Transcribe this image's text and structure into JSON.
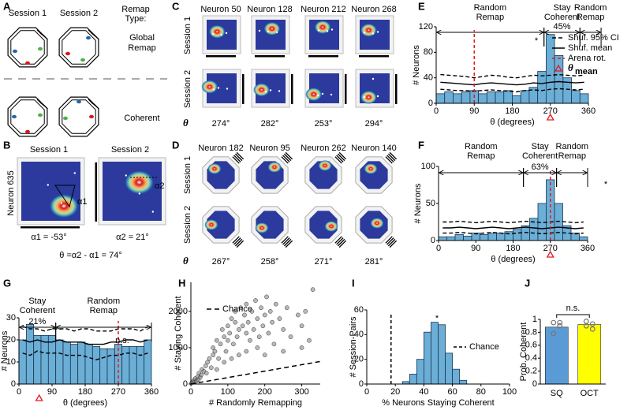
{
  "panel_a": {
    "letter": "A",
    "session_1": "Session 1",
    "session_2": "Session 2",
    "remap_type": "Remap",
    "remap_type_2": "Type:",
    "global_remap": [
      "Global",
      "Remap"
    ],
    "coherent": "Coherent"
  },
  "panel_b": {
    "letter": "B",
    "session_1": "Session 1",
    "session_2": "Session 2",
    "neuron": "Neuron 635",
    "marker_1": "α1",
    "marker_2": "α2",
    "alpha_1": "α1 = -53°",
    "alpha_2": "α2 = 21°",
    "theta": "θ =α2 - α1 = 74°"
  },
  "panel_c": {
    "letter": "C",
    "neurons": [
      "Neuron 50",
      "Neuron 128",
      "Neuron 212",
      "Neuron 268"
    ],
    "rows": [
      "Session 1",
      "Session 2"
    ],
    "theta_symbol": "θ",
    "theta": [
      "274°",
      "282°",
      "253°",
      "294°"
    ]
  },
  "panel_d": {
    "letter": "D",
    "neurons": [
      "Neuron 182",
      "Neuron 95",
      "Neuron 262",
      "Neuron 140"
    ],
    "rows": [
      "Session 1",
      "Session 2"
    ],
    "theta_symbol": "θ",
    "theta": [
      "267°",
      "258°",
      "271°",
      "281°"
    ]
  },
  "chart_data": [
    {
      "type": "histogram",
      "panel": "E",
      "bins": [
        0,
        20,
        40,
        60,
        80,
        100,
        120,
        140,
        160,
        180,
        200,
        220,
        240,
        260,
        280,
        300,
        320,
        340,
        360
      ],
      "values": [
        15,
        18,
        15,
        18,
        20,
        15,
        18,
        18,
        20,
        12,
        20,
        25,
        50,
        108,
        75,
        40,
        20,
        15
      ],
      "color": "#6baed6",
      "xlim": [
        0,
        360
      ],
      "xticks": [
        0,
        90,
        180,
        270,
        360
      ],
      "ylim": [
        0,
        120
      ],
      "yticks": [
        0,
        40,
        80,
        120
      ],
      "xlabel": "θ (degrees)",
      "ylabel": "# Neurons",
      "line_x": [
        10,
        30,
        50,
        70,
        90,
        110,
        130,
        150,
        170,
        190,
        210,
        230,
        250,
        270,
        290,
        310,
        330,
        350
      ],
      "series": [
        {
          "name": "Shuf. 95% CI",
          "dash": true,
          "color": "#000000",
          "values": [
            45,
            44,
            43,
            42,
            40,
            42,
            44,
            43,
            41,
            40,
            42,
            44,
            43,
            44,
            45,
            44,
            43,
            44
          ],
          "lower": [
            22,
            21,
            20,
            20,
            19,
            20,
            21,
            20,
            19,
            18,
            20,
            21,
            20,
            22,
            23,
            22,
            21,
            22
          ]
        },
        {
          "name": "Shuf. mean",
          "dash": false,
          "color": "#000000",
          "values": [
            33,
            32,
            31,
            30,
            29,
            31,
            32,
            31,
            30,
            29,
            30,
            32,
            31,
            33,
            34,
            33,
            32,
            33
          ]
        }
      ],
      "reference_line": {
        "name": "Arena rot.",
        "value": 90,
        "color": "#e41a1c"
      },
      "mean_marker": {
        "name": "θ",
        "name_sub": "mean",
        "value": 270,
        "color": "#e41a1c"
      },
      "regions": [
        {
          "label": [
            "Random",
            "Remap"
          ],
          "range": [
            0,
            255
          ]
        },
        {
          "label": [
            "Stay",
            "Coherent"
          ],
          "pct": "45%",
          "range": [
            255,
            340
          ]
        },
        {
          "label": [
            "Random",
            "Remap"
          ],
          "range": [
            340,
            390
          ]
        }
      ],
      "star": "*",
      "legend": true
    },
    {
      "type": "histogram",
      "panel": "F",
      "bins": [
        0,
        20,
        40,
        60,
        80,
        100,
        120,
        140,
        160,
        180,
        200,
        220,
        240,
        260,
        280,
        300,
        320,
        340,
        360
      ],
      "values": [
        5,
        5,
        8,
        6,
        10,
        8,
        10,
        10,
        12,
        15,
        20,
        30,
        50,
        82,
        50,
        20,
        10,
        5
      ],
      "color": "#6baed6",
      "xlim": [
        0,
        360
      ],
      "xticks": [
        0,
        90,
        180,
        270,
        360
      ],
      "ylim": [
        0,
        100
      ],
      "yticks": [
        0,
        50,
        100
      ],
      "xlabel": "θ (degrees)",
      "ylabel": "# Neurons",
      "line_x": [
        10,
        30,
        50,
        70,
        90,
        110,
        130,
        150,
        170,
        190,
        210,
        230,
        250,
        270,
        290,
        310,
        330,
        350
      ],
      "series": [
        {
          "dash": true,
          "color": "#000000",
          "values": [
            25,
            25,
            26,
            25,
            24,
            25,
            26,
            25,
            24,
            25,
            26,
            25,
            24,
            25,
            26,
            25,
            24,
            25
          ],
          "lower": [
            10,
            10,
            11,
            10,
            9,
            10,
            11,
            10,
            9,
            10,
            11,
            10,
            9,
            10,
            11,
            10,
            9,
            10
          ]
        },
        {
          "dash": false,
          "color": "#000000",
          "values": [
            17,
            17,
            18,
            17,
            16,
            17,
            18,
            17,
            16,
            17,
            18,
            17,
            16,
            17,
            18,
            17,
            16,
            17
          ]
        }
      ],
      "reference_line": {
        "value": 270,
        "color": "#e41a1c"
      },
      "mean_marker": {
        "value": 270,
        "color": "#e41a1c"
      },
      "regions": [
        {
          "label": [
            "Random",
            "Remap"
          ],
          "range": [
            0,
            205
          ]
        },
        {
          "label": [
            "Stay",
            "Coherent"
          ],
          "pct": "63%",
          "range": [
            205,
            285
          ]
        },
        {
          "label": [
            "Random",
            "Remap"
          ],
          "range": [
            285,
            360
          ]
        }
      ],
      "star": "*",
      "legend": false
    },
    {
      "type": "histogram",
      "panel": "G",
      "bins": [
        0,
        20,
        40,
        60,
        80,
        100,
        120,
        140,
        160,
        180,
        200,
        220,
        240,
        260,
        280,
        300,
        320,
        340,
        360
      ],
      "values": [
        20,
        27,
        22,
        22,
        22,
        20,
        19,
        18,
        19,
        18,
        17,
        16,
        16,
        18,
        17,
        17,
        17,
        20
      ],
      "color": "#6baed6",
      "xlim": [
        0,
        360
      ],
      "xticks": [
        0,
        90,
        180,
        270,
        360
      ],
      "ylim": [
        0,
        30
      ],
      "yticks": [
        0,
        10,
        20,
        30
      ],
      "xlabel": "θ (degrees)",
      "ylabel": "# Neurons",
      "line_x": [
        10,
        30,
        50,
        70,
        90,
        110,
        130,
        150,
        170,
        190,
        210,
        230,
        250,
        270,
        290,
        310,
        330,
        350
      ],
      "series": [
        {
          "dash": true,
          "color": "#000000",
          "values": [
            26,
            25,
            25,
            24,
            25,
            25,
            25,
            24,
            25,
            25,
            24,
            24,
            24,
            25,
            25,
            25,
            24,
            26
          ],
          "lower": [
            14,
            13,
            15,
            14,
            14,
            14,
            13,
            13,
            13,
            12,
            11,
            12,
            13,
            13,
            14,
            14,
            13,
            14
          ]
        },
        {
          "dash": false,
          "color": "#000000",
          "values": [
            20,
            19,
            20,
            19,
            19,
            20,
            19,
            19,
            19,
            18,
            18,
            18,
            19,
            19,
            20,
            20,
            19,
            20
          ]
        }
      ],
      "reference_line": {
        "value": 270,
        "color": "#e41a1c"
      },
      "mean_marker": {
        "value": 55,
        "color": "#e41a1c"
      },
      "regions": [
        {
          "label": [
            "Stay",
            "Coherent"
          ],
          "pct": "21%",
          "range": [
            0,
            100
          ]
        },
        {
          "label": [
            "Random",
            "Remap"
          ],
          "range": [
            100,
            360
          ]
        }
      ],
      "star": "n.s.",
      "legend": false
    },
    {
      "type": "scatter",
      "panel": "H",
      "x": [
        2,
        5,
        8,
        10,
        12,
        15,
        18,
        20,
        22,
        25,
        28,
        30,
        35,
        40,
        42,
        45,
        50,
        55,
        60,
        60,
        65,
        70,
        75,
        80,
        85,
        90,
        95,
        100,
        100,
        105,
        110,
        115,
        120,
        120,
        125,
        130,
        135,
        140,
        145,
        150,
        150,
        155,
        160,
        165,
        170,
        175,
        180,
        185,
        190,
        195,
        200,
        205,
        210,
        215,
        220,
        225,
        230,
        240,
        250,
        260,
        270,
        290,
        300,
        310,
        320,
        330,
        150,
        180,
        200,
        130,
        90,
        110,
        70,
        250,
        300
      ],
      "series": [
        {
          "color": "#808080",
          "values": [
            30,
            60,
            100,
            50,
            150,
            80,
            200,
            120,
            300,
            180,
            250,
            400,
            350,
            500,
            300,
            600,
            700,
            450,
            800,
            1000,
            900,
            1200,
            700,
            1100,
            1500,
            1300,
            900,
            1600,
            1200,
            1400,
            1800,
            1100,
            1700,
            2000,
            1300,
            1500,
            2100,
            1600,
            1900,
            1400,
            2200,
            1700,
            1200,
            2000,
            1500,
            2300,
            1800,
            1300,
            2100,
            1600,
            1900,
            2400,
            1400,
            2000,
            1700,
            1100,
            2200,
            1800,
            1500,
            2100,
            1300,
            1900,
            1600,
            2000,
            1200,
            2600,
            900,
            1000,
            800,
            800,
            600,
            700,
            400,
            900,
            1000
          ]
        },
        {
          "name": "Chance",
          "dash": true,
          "color": "#000000",
          "x": [
            0,
            350
          ],
          "values": [
            0,
            620
          ]
        }
      ],
      "xlim": [
        0,
        350
      ],
      "xticks": [
        0,
        100,
        200,
        300
      ],
      "ylim": [
        0,
        2800
      ],
      "yticks": [
        0,
        1000,
        2000
      ],
      "xlabel": "# Randomly Remapping",
      "ylabel": "# Staying Coherent",
      "legend": true
    },
    {
      "type": "histogram",
      "panel": "I",
      "bins": [
        25,
        30,
        35,
        40,
        45,
        50,
        55,
        60,
        65,
        70
      ],
      "values": [
        2,
        8,
        20,
        42,
        50,
        48,
        25,
        12,
        3
      ],
      "color": "#6baed6",
      "xlim": [
        0,
        100
      ],
      "xticks": [
        0,
        20,
        40,
        60,
        80,
        100
      ],
      "ylim": [
        0,
        60
      ],
      "yticks": [
        0,
        20,
        40,
        60
      ],
      "xlabel": "% Neurons Staying Coherent",
      "ylabel": "# Session-Pairs",
      "reference_line": {
        "name": "Chance",
        "value": 17,
        "color": "#000000"
      },
      "star": "*",
      "legend": true
    },
    {
      "type": "bar",
      "panel": "J",
      "categories": [
        "SQ",
        "OCT"
      ],
      "values": [
        0.88,
        0.92
      ],
      "colors": [
        "#5b9bd5",
        "#ffff00"
      ],
      "points": [
        [
          0.95,
          0.9,
          0.78,
          0.95
        ],
        [
          0.97,
          0.93,
          0.9,
          0.85
        ]
      ],
      "ylim": [
        0,
        1
      ],
      "yticks": [
        0,
        0.2,
        0.4,
        0.6,
        0.8,
        1
      ],
      "ylabel": "Prob. Coherent",
      "annotation": "n.s."
    }
  ]
}
